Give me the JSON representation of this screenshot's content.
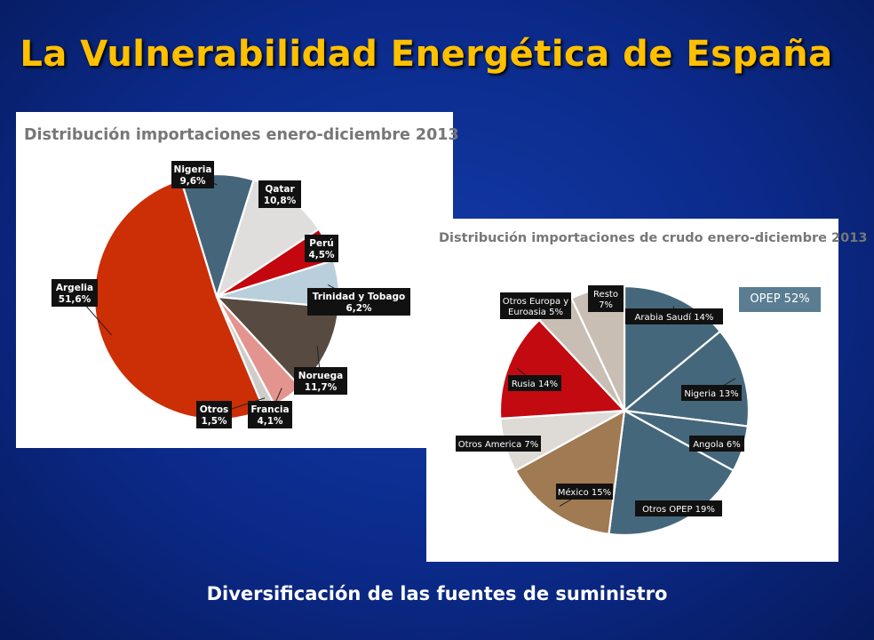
{
  "slide": {
    "title": "La Vulnerabilidad Energética de España",
    "subtitle": "Diversificación de las fuentes de suministro"
  },
  "chart_data": [
    {
      "type": "pie",
      "title": "Distribución importaciones enero-diciembre 2013",
      "slices": [
        {
          "name": "Nigeria",
          "value": 9.6,
          "label": "9,6%",
          "color": "#44657a"
        },
        {
          "name": "Qatar",
          "value": 10.8,
          "label": "10,8%",
          "color": "#e0dedc"
        },
        {
          "name": "Perú",
          "value": 4.5,
          "label": "4,5%",
          "color": "#c4060e"
        },
        {
          "name": "Trinidad y Tobago",
          "value": 6.2,
          "label": "6,2%",
          "color": "#b9cfdb"
        },
        {
          "name": "Noruega",
          "value": 11.7,
          "label": "11,7%",
          "color": "#574a40"
        },
        {
          "name": "Francia",
          "value": 4.1,
          "label": "4,1%",
          "color": "#e3948e"
        },
        {
          "name": "Otros",
          "value": 1.5,
          "label": "1,5%",
          "color": "#cfcdca"
        },
        {
          "name": "Argelia",
          "value": 51.6,
          "label": "51,6%",
          "color": "#cc2e06"
        }
      ]
    },
    {
      "type": "pie",
      "title": "Distribución importaciones de crudo enero-diciembre 2013",
      "annotation": "OPEP 52%",
      "slices": [
        {
          "name": "Arabia Saudí",
          "value": 14,
          "label": "Arabia Saudí 14%",
          "color": "#44677b"
        },
        {
          "name": "Nigeria",
          "value": 13,
          "label": "Nigeria 13%",
          "color": "#44677b"
        },
        {
          "name": "Angola",
          "value": 6,
          "label": "Angola 6%",
          "color": "#44677b"
        },
        {
          "name": "Otros OPEP",
          "value": 19,
          "label": "Otros OPEP 19%",
          "color": "#44677b"
        },
        {
          "name": "México",
          "value": 15,
          "label": "México 15%",
          "color": "#a07a52"
        },
        {
          "name": "Otros America",
          "value": 7,
          "label": "Otros America 7%",
          "color": "#dedad6"
        },
        {
          "name": "Rusia",
          "value": 14,
          "label": "Rusia 14%",
          "color": "#c20a10"
        },
        {
          "name": "Otros Europa y Euroasia",
          "value": 5,
          "label": "Otros Europa y Euroasia 5%",
          "color": "#c8beb3"
        },
        {
          "name": "Resto",
          "value": 7,
          "label": "Resto 7%",
          "color": "#c8beb3"
        }
      ]
    }
  ]
}
